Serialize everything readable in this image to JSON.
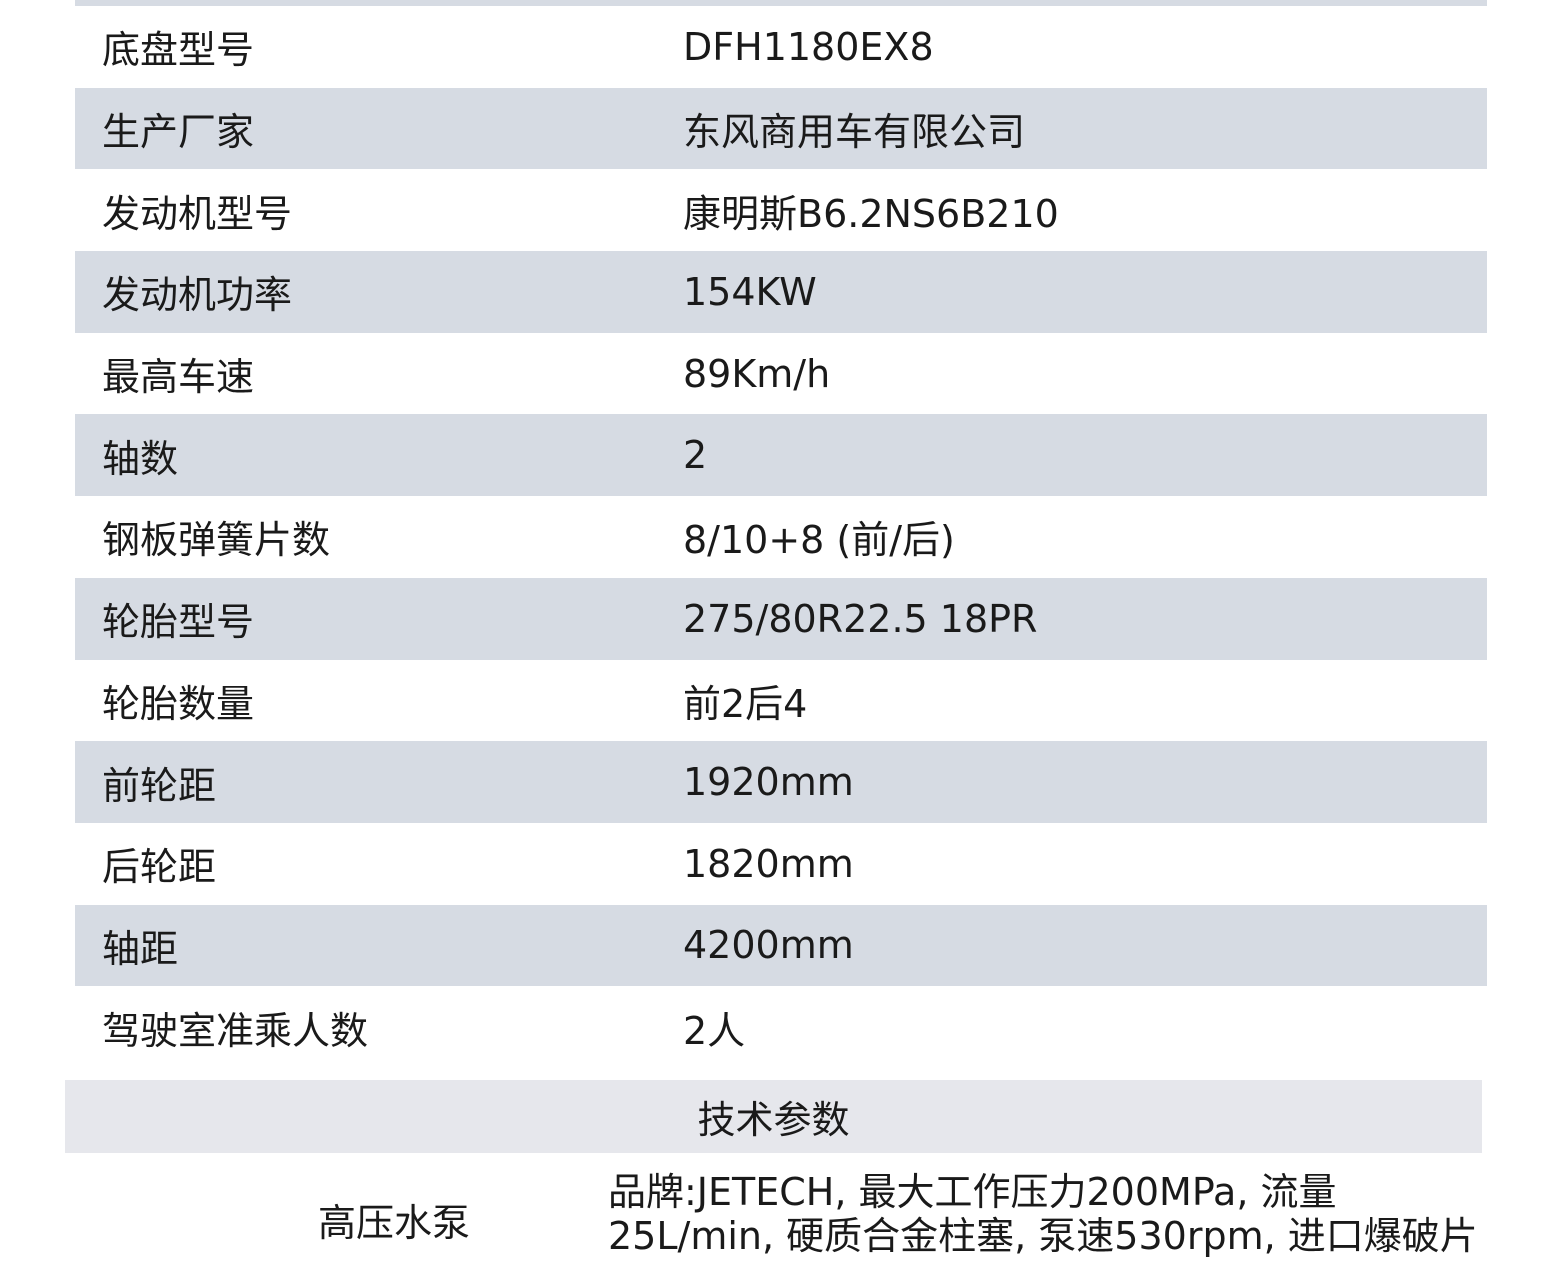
{
  "spec_rows": [
    {
      "label": "底盘型号",
      "value": "DFH1180EX8"
    },
    {
      "label": "生产厂家",
      "value": "东风商用车有限公司"
    },
    {
      "label": "发动机型号",
      "value": "康明斯B6.2NS6B210"
    },
    {
      "label": "发动机功率",
      "value": "154KW"
    },
    {
      "label": "最高车速",
      "value": "89Km/h"
    },
    {
      "label": "轴数",
      "value": "2"
    },
    {
      "label": "钢板弹簧片数",
      "value": "8/10+8 (前/后)"
    },
    {
      "label": "轮胎型号",
      "value": "275/80R22.5 18PR"
    },
    {
      "label": "轮胎数量",
      "value": "前2后4"
    },
    {
      "label": "前轮距",
      "value": "1920mm"
    },
    {
      "label": "后轮距",
      "value": "1820mm"
    },
    {
      "label": "轴距",
      "value": "4200mm"
    },
    {
      "label": "驾驶室准乘人数",
      "value": "2人"
    }
  ],
  "tech_section": {
    "title": "技术参数",
    "rows": [
      {
        "label": "高压水泵",
        "value": "品牌:JETECH, 最大工作压力200MPa, 流量25L/min, 硬质合金柱塞, 泵速530rpm, 进口爆破片"
      }
    ]
  },
  "colors": {
    "stripe": "#d6dbe3",
    "header": "#e6e7ec"
  }
}
